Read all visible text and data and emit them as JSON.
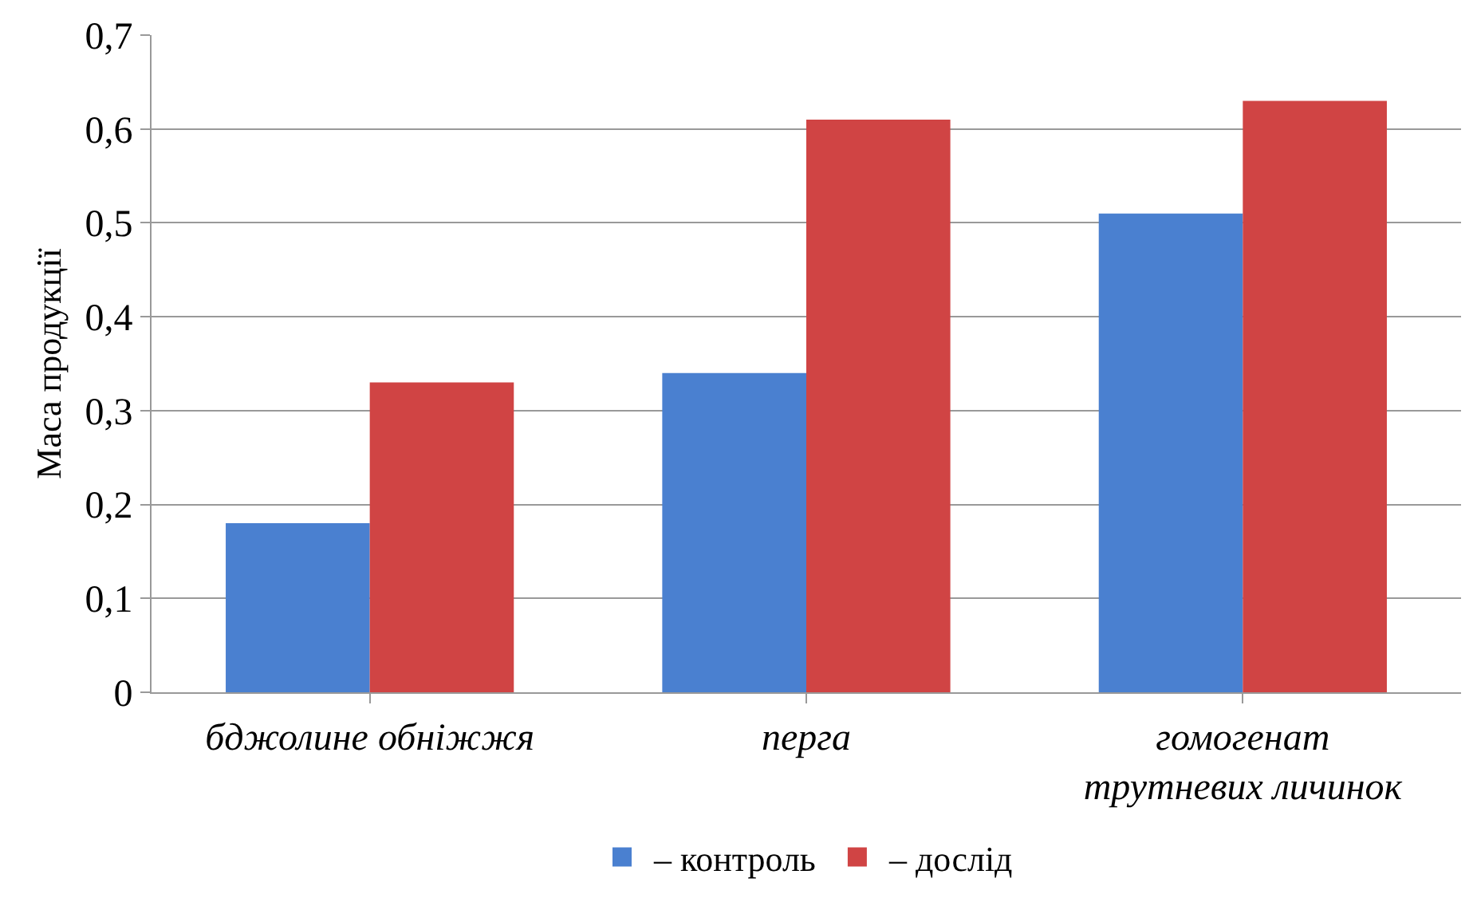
{
  "chart_data": {
    "type": "bar",
    "ylabel": "Маса продукції",
    "categories": [
      "бджолине обніжжя",
      "перга",
      "гомогенат трутневих личинок"
    ],
    "series": [
      {
        "name": "– контроль",
        "color": "#4a80d0",
        "values": [
          0.18,
          0.34,
          0.51
        ]
      },
      {
        "name": "– дослід",
        "color": "#d04444",
        "values": [
          0.33,
          0.61,
          0.63
        ]
      }
    ],
    "ylim": [
      0,
      0.7
    ],
    "yticks": [
      {
        "value": 0,
        "label": "0"
      },
      {
        "value": 0.1,
        "label": "0,1"
      },
      {
        "value": 0.2,
        "label": "0,2"
      },
      {
        "value": 0.3,
        "label": "0,3"
      },
      {
        "value": 0.4,
        "label": "0,4"
      },
      {
        "value": 0.5,
        "label": "0,5"
      },
      {
        "value": 0.6,
        "label": "0,6"
      },
      {
        "value": 0.7,
        "label": "0,7"
      }
    ],
    "grid": "y",
    "legend": "bottom"
  }
}
